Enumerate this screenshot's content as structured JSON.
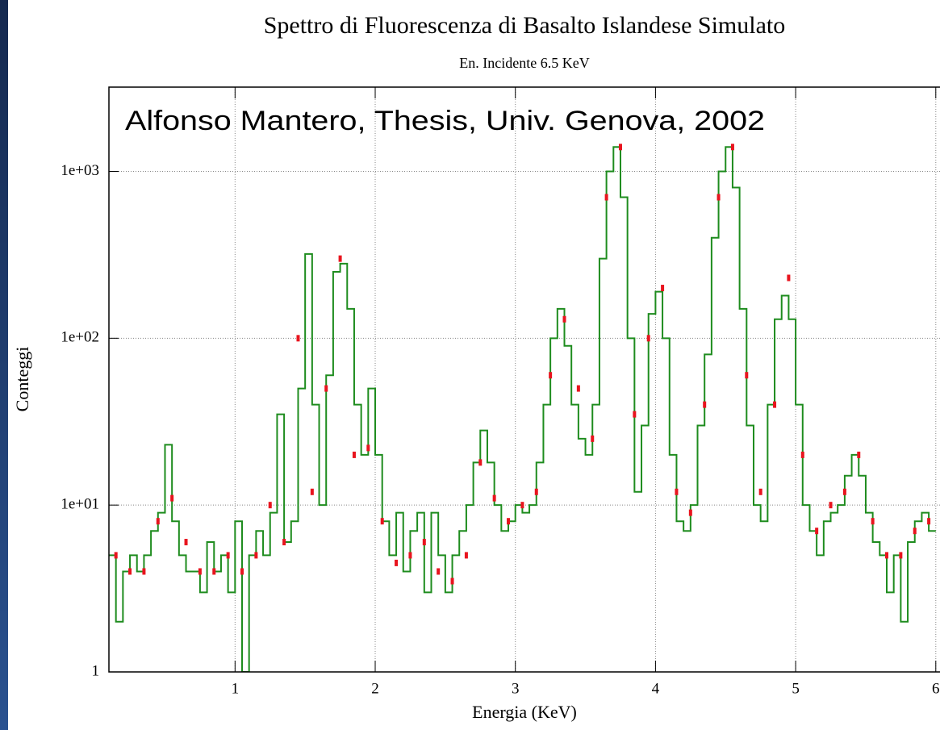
{
  "chart_data": {
    "type": "histogram",
    "title": "Spettro di Fluorescenza di Basalto Islandese Simulato",
    "subtitle": "En. Incidente 6.5 KeV",
    "x_label": "Energia (KeV)",
    "y_label": "Conteggi",
    "annotation": "Alfonso Mantero, Thesis, Univ. Genova, 2002",
    "log_y": true,
    "grid": true,
    "xlim": [
      0.1,
      6.03
    ],
    "ylim": [
      1,
      3200
    ],
    "xticks": [
      1,
      2,
      3,
      4,
      5,
      6
    ],
    "yticks": [
      1,
      {
        "value": 10,
        "label": "1e+01"
      },
      {
        "value": 100,
        "label": "1e+02"
      },
      {
        "value": 1000,
        "label": "1e+03"
      }
    ],
    "bins": [
      0.1,
      0.15,
      0.2,
      0.25,
      0.3,
      0.35,
      0.4,
      0.45,
      0.5,
      0.55,
      0.6,
      0.65,
      0.7,
      0.75,
      0.8,
      0.85,
      0.9,
      0.95,
      1.0,
      1.05,
      1.1,
      1.15,
      1.2,
      1.25,
      1.3,
      1.35,
      1.4,
      1.45,
      1.5,
      1.55,
      1.6,
      1.65,
      1.7,
      1.75,
      1.8,
      1.85,
      1.9,
      1.95,
      2.0,
      2.05,
      2.1,
      2.15,
      2.2,
      2.25,
      2.3,
      2.35,
      2.4,
      2.45,
      2.5,
      2.55,
      2.6,
      2.65,
      2.7,
      2.75,
      2.8,
      2.85,
      2.9,
      2.95,
      3.0,
      3.05,
      3.1,
      3.15,
      3.2,
      3.25,
      3.3,
      3.35,
      3.4,
      3.45,
      3.5,
      3.55,
      3.6,
      3.65,
      3.7,
      3.75,
      3.8,
      3.85,
      3.9,
      3.95,
      4.0,
      4.05,
      4.1,
      4.15,
      4.2,
      4.25,
      4.3,
      4.35,
      4.4,
      4.45,
      4.5,
      4.55,
      4.6,
      4.65,
      4.7,
      4.75,
      4.8,
      4.85,
      4.9,
      4.95,
      5.0,
      5.05,
      5.1,
      5.15,
      5.2,
      5.25,
      5.3,
      5.35,
      5.4,
      5.45,
      5.5,
      5.55,
      5.6,
      5.65,
      5.7,
      5.75,
      5.8,
      5.85,
      5.9,
      5.95,
      6.0
    ],
    "series": [
      {
        "color": "#1e8c1e",
        "values": [
          5,
          2,
          4,
          5,
          4,
          5,
          7,
          9,
          23,
          8,
          5,
          4,
          4,
          3,
          6,
          4,
          5,
          3,
          8,
          1,
          5,
          7,
          5,
          9,
          35,
          6,
          8,
          50,
          320,
          40,
          10,
          60,
          250,
          280,
          150,
          40,
          20,
          50,
          20,
          8,
          5,
          9,
          4,
          7,
          9,
          3,
          9,
          5,
          3,
          5,
          7,
          10,
          18,
          28,
          18,
          10,
          7,
          8,
          10,
          9,
          10,
          18,
          40,
          100,
          150,
          90,
          40,
          25,
          20,
          40,
          300,
          1000,
          1400,
          700,
          100,
          12,
          30,
          140,
          190,
          100,
          20,
          8,
          7,
          10,
          30,
          80,
          400,
          1000,
          1400,
          800,
          150,
          30,
          10,
          8,
          40,
          130,
          180,
          130,
          40,
          10,
          7,
          5,
          8,
          9,
          10,
          15,
          20,
          15,
          9,
          6,
          5,
          3,
          5,
          2,
          6,
          8,
          9,
          7
        ]
      },
      {
        "color": "#e8141e",
        "x": [
          0.15,
          0.25,
          0.35,
          0.45,
          0.55,
          0.65,
          0.75,
          0.85,
          0.95,
          1.05,
          1.15,
          1.25,
          1.35,
          1.45,
          1.55,
          1.65,
          1.75,
          1.85,
          1.95,
          2.05,
          2.15,
          2.25,
          2.35,
          2.45,
          2.55,
          2.65,
          2.75,
          2.85,
          2.95,
          3.05,
          3.15,
          3.25,
          3.35,
          3.45,
          3.55,
          3.65,
          3.75,
          3.85,
          3.95,
          4.05,
          4.15,
          4.25,
          4.35,
          4.45,
          4.55,
          4.65,
          4.75,
          4.85,
          4.95,
          5.05,
          5.15,
          5.25,
          5.35,
          5.45,
          5.55,
          5.65,
          5.75,
          5.85,
          5.95
        ],
        "values": [
          5,
          4,
          4,
          8,
          11,
          6,
          4,
          4,
          5,
          4,
          5,
          10,
          6,
          100,
          12,
          50,
          300,
          20,
          22,
          8,
          4.5,
          5,
          6,
          4,
          3.5,
          5,
          18,
          11,
          8,
          10,
          12,
          60,
          130,
          50,
          25,
          700,
          1400,
          35,
          100,
          200,
          12,
          9,
          40,
          700,
          1400,
          60,
          12,
          40,
          230,
          20,
          7,
          10,
          12,
          20,
          8,
          5,
          5,
          7,
          8
        ]
      }
    ]
  }
}
